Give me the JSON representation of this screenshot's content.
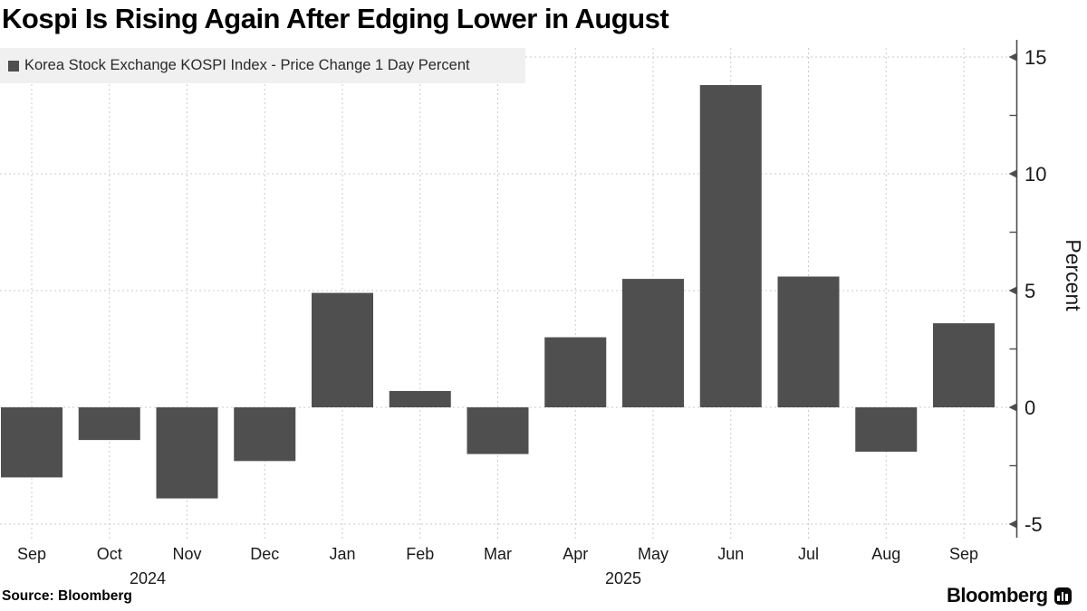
{
  "title": "Kospi Is Rising Again After Edging Lower in August",
  "legend": {
    "label": "Korea Stock Exchange KOSPI Index - Price Change 1 Day Percent",
    "marker_color": "#4f4f4f"
  },
  "source": "Source: Bloomberg",
  "brand": {
    "name": "Bloomberg"
  },
  "chart_data": {
    "type": "bar",
    "title": "Kospi Is Rising Again After Edging Lower in August",
    "series_name": "Korea Stock Exchange KOSPI Index - Price Change 1 Day Percent",
    "categories": [
      "Sep",
      "Oct",
      "Nov",
      "Dec",
      "Jan",
      "Feb",
      "Mar",
      "Apr",
      "May",
      "Jun",
      "Jul",
      "Aug",
      "Sep"
    ],
    "values": [
      -3.0,
      -1.4,
      -3.9,
      -2.3,
      4.9,
      0.7,
      -2.0,
      3.0,
      5.5,
      13.8,
      5.6,
      -1.9,
      3.6
    ],
    "year_labels": [
      {
        "text": "2024",
        "x": 163
      },
      {
        "text": "2025",
        "x": 688
      }
    ],
    "xlabel": "",
    "ylabel": "Percent",
    "ylim": [
      -5,
      15
    ],
    "yticks": [
      15,
      10,
      5,
      0,
      -5
    ],
    "yticks_minor": [
      12.5,
      7.5,
      2.5,
      -2.5
    ],
    "grid": true,
    "legend_position": "top-left",
    "axis_side": "right",
    "bar_color": "#4f4f4f",
    "grid_color": "#cbcbcb",
    "axis_color": "#4d4d4d",
    "tick_label_color": "#1a1a1a"
  }
}
